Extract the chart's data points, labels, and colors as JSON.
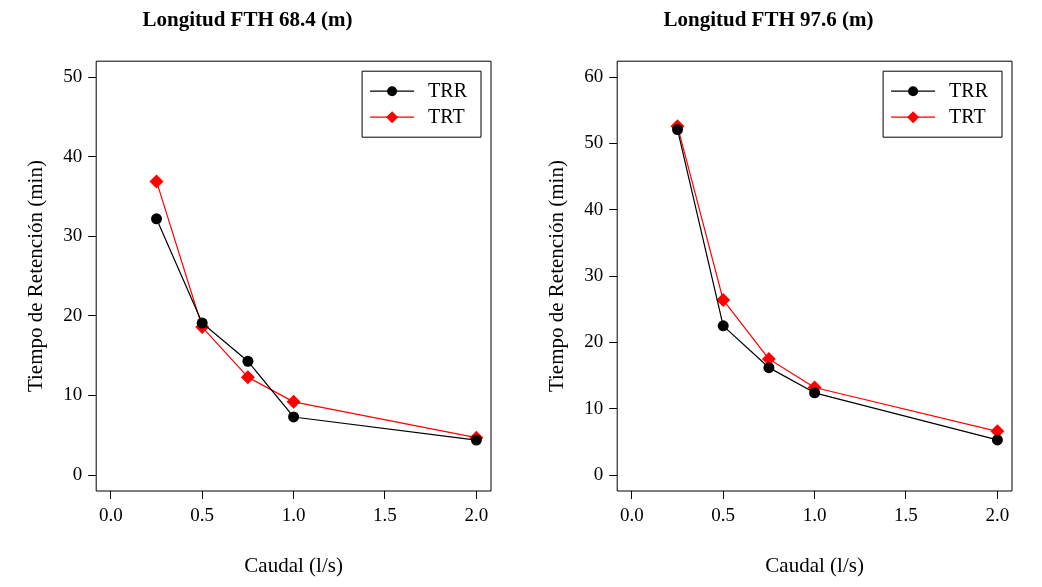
{
  "chart_data": [
    {
      "type": "line",
      "title": "Longitud FTH 68.4 (m)",
      "xlabel": "Caudal (l/s)",
      "ylabel": "Tiempo de Retención (min)",
      "x": [
        0.25,
        0.5,
        0.75,
        1.0,
        2.0
      ],
      "xlim": [
        -0.08,
        2.08
      ],
      "xticks": [
        {
          "value": 0,
          "label": "0.0"
        },
        {
          "value": 0.5,
          "label": "0.5"
        },
        {
          "value": 1,
          "label": "1.0"
        },
        {
          "value": 1.5,
          "label": "1.5"
        },
        {
          "value": 2,
          "label": "2.0"
        }
      ],
      "ylim": [
        -2,
        52
      ],
      "yticks": [
        0,
        10,
        20,
        30,
        40,
        50
      ],
      "grid": false,
      "legend": "top right",
      "line_style": "solid",
      "series": [
        {
          "name": "TRR",
          "color": "#000000",
          "marker": "circle",
          "values": [
            32.2,
            19.1,
            14.3,
            7.3,
            4.4
          ]
        },
        {
          "name": "TRT",
          "color": "#ff0000",
          "marker": "diamond",
          "values": [
            36.9,
            18.6,
            12.3,
            9.2,
            4.7
          ]
        }
      ]
    },
    {
      "type": "line",
      "title": "Longitud FTH 97.6 (m)",
      "xlabel": "Caudal (l/s)",
      "ylabel": "Tiempo de Retención (min)",
      "x": [
        0.25,
        0.5,
        0.75,
        1.0,
        2.0
      ],
      "xlim": [
        -0.08,
        2.08
      ],
      "xticks": [
        {
          "value": 0,
          "label": "0.0"
        },
        {
          "value": 0.5,
          "label": "0.5"
        },
        {
          "value": 1,
          "label": "1.0"
        },
        {
          "value": 1.5,
          "label": "1.5"
        },
        {
          "value": 2,
          "label": "2.0"
        }
      ],
      "ylim": [
        -2.4,
        62.4
      ],
      "yticks": [
        0,
        10,
        20,
        30,
        40,
        50,
        60
      ],
      "grid": false,
      "legend": "top right",
      "line_style": "solid",
      "series": [
        {
          "name": "TRR",
          "color": "#000000",
          "marker": "circle",
          "values": [
            52.1,
            22.5,
            16.2,
            12.4,
            5.3
          ]
        },
        {
          "name": "TRT",
          "color": "#ff0000",
          "marker": "diamond",
          "values": [
            52.6,
            26.4,
            17.5,
            13.2,
            6.6
          ]
        }
      ]
    }
  ]
}
